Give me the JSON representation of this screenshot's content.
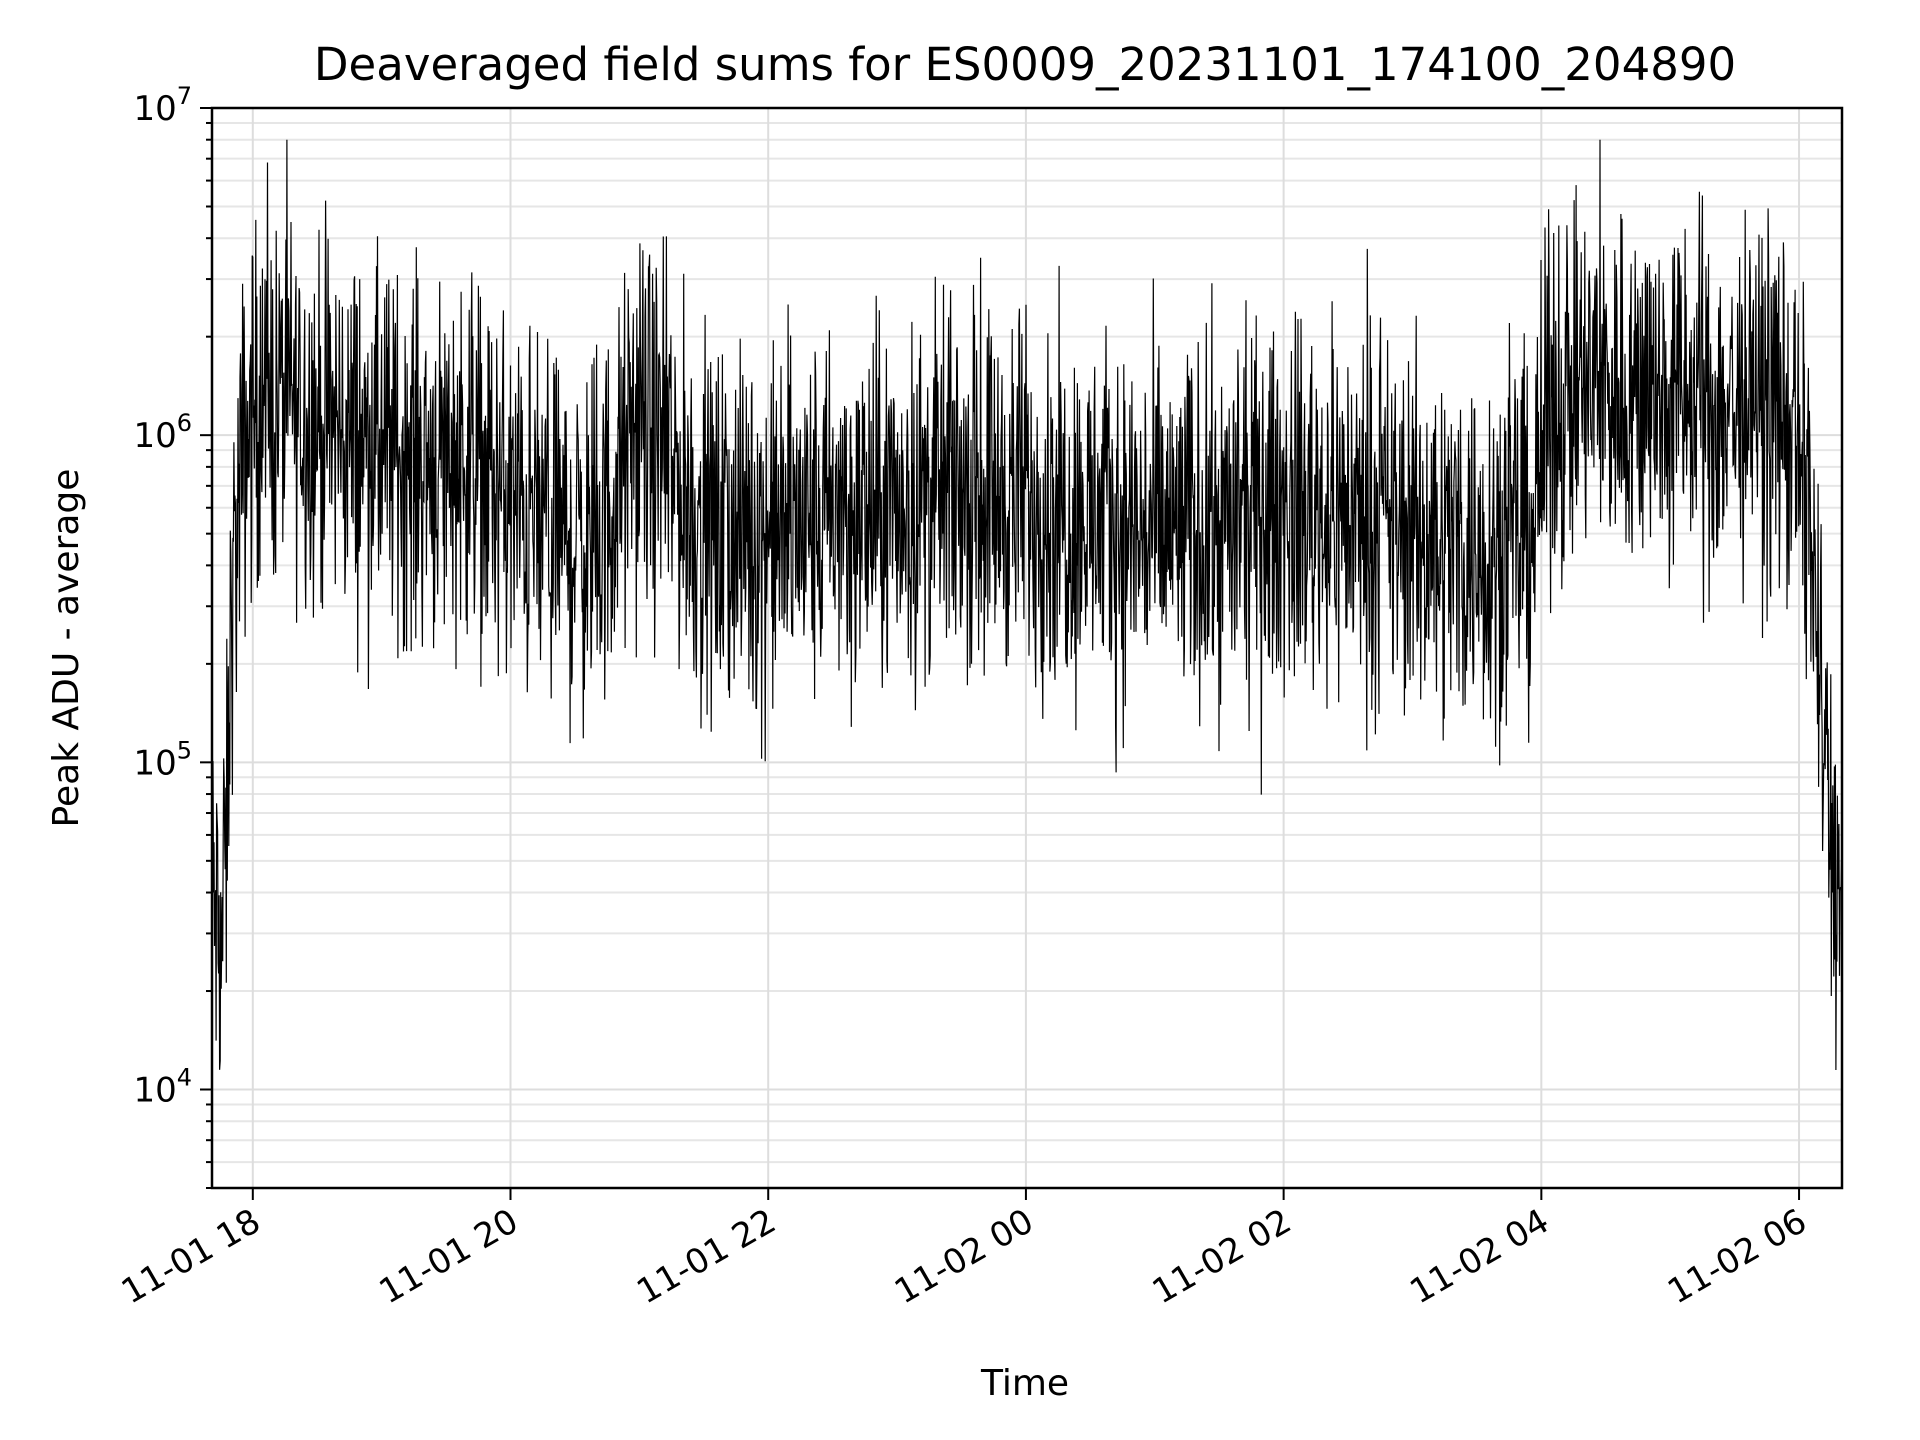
{
  "chart_data": {
    "type": "line",
    "title": "Deaveraged field sums for ES0009_20231101_174100_204890",
    "xlabel": "Time",
    "ylabel": "Peak ADU - average",
    "yscale": "log",
    "ylim": [
      5000,
      10000000
    ],
    "xlim": [
      "2023-11-01 17:41",
      "2023-11-02 06:20"
    ],
    "grid": true,
    "x_ticks": [
      {
        "value": "2023-11-01 18:00",
        "label": "11-01 18"
      },
      {
        "value": "2023-11-01 20:00",
        "label": "11-01 20"
      },
      {
        "value": "2023-11-01 22:00",
        "label": "11-01 22"
      },
      {
        "value": "2023-11-02 00:00",
        "label": "11-02 00"
      },
      {
        "value": "2023-11-02 02:00",
        "label": "11-02 02"
      },
      {
        "value": "2023-11-02 04:00",
        "label": "11-02 04"
      },
      {
        "value": "2023-11-02 06:00",
        "label": "11-02 06"
      }
    ],
    "y_ticks": [
      {
        "value": 10000,
        "base": "10",
        "exp": "4"
      },
      {
        "value": 100000,
        "base": "10",
        "exp": "5"
      },
      {
        "value": 1000000,
        "base": "10",
        "exp": "6"
      },
      {
        "value": 10000000,
        "base": "10",
        "exp": "7"
      }
    ],
    "series": [
      {
        "color": "#000000",
        "x": [
          "2023-11-01 17:41",
          "2023-11-01 17:45",
          "2023-11-01 17:48",
          "2023-11-01 17:50",
          "2023-11-01 17:55",
          "2023-11-01 18:00",
          "2023-11-01 18:15",
          "2023-11-01 18:30",
          "2023-11-01 18:45",
          "2023-11-01 19:00",
          "2023-11-01 19:20",
          "2023-11-01 19:40",
          "2023-11-01 20:00",
          "2023-11-01 20:20",
          "2023-11-01 20:40",
          "2023-11-01 21:00",
          "2023-11-01 21:15",
          "2023-11-01 21:30",
          "2023-11-01 22:00",
          "2023-11-01 22:30",
          "2023-11-01 23:00",
          "2023-11-01 23:30",
          "2023-11-02 00:00",
          "2023-11-02 00:30",
          "2023-11-02 01:00",
          "2023-11-02 01:30",
          "2023-11-02 02:00",
          "2023-11-02 02:30",
          "2023-11-02 03:00",
          "2023-11-02 03:30",
          "2023-11-02 03:55",
          "2023-11-02 04:05",
          "2023-11-02 04:30",
          "2023-11-02 05:00",
          "2023-11-02 05:30",
          "2023-11-02 05:50",
          "2023-11-02 06:05",
          "2023-11-02 06:12",
          "2023-11-02 06:20"
        ],
        "y": [
          40000,
          25000,
          60000,
          300000,
          800000,
          1200000,
          1300000,
          1100000,
          1000000,
          900000,
          850000,
          900000,
          600000,
          500000,
          450000,
          1100000,
          800000,
          500000,
          500000,
          550000,
          600000,
          700000,
          650000,
          550000,
          500000,
          520000,
          600000,
          580000,
          500000,
          450000,
          500000,
          1300000,
          1400000,
          1300000,
          1200000,
          1300000,
          600000,
          100000,
          30000
        ]
      }
    ]
  }
}
